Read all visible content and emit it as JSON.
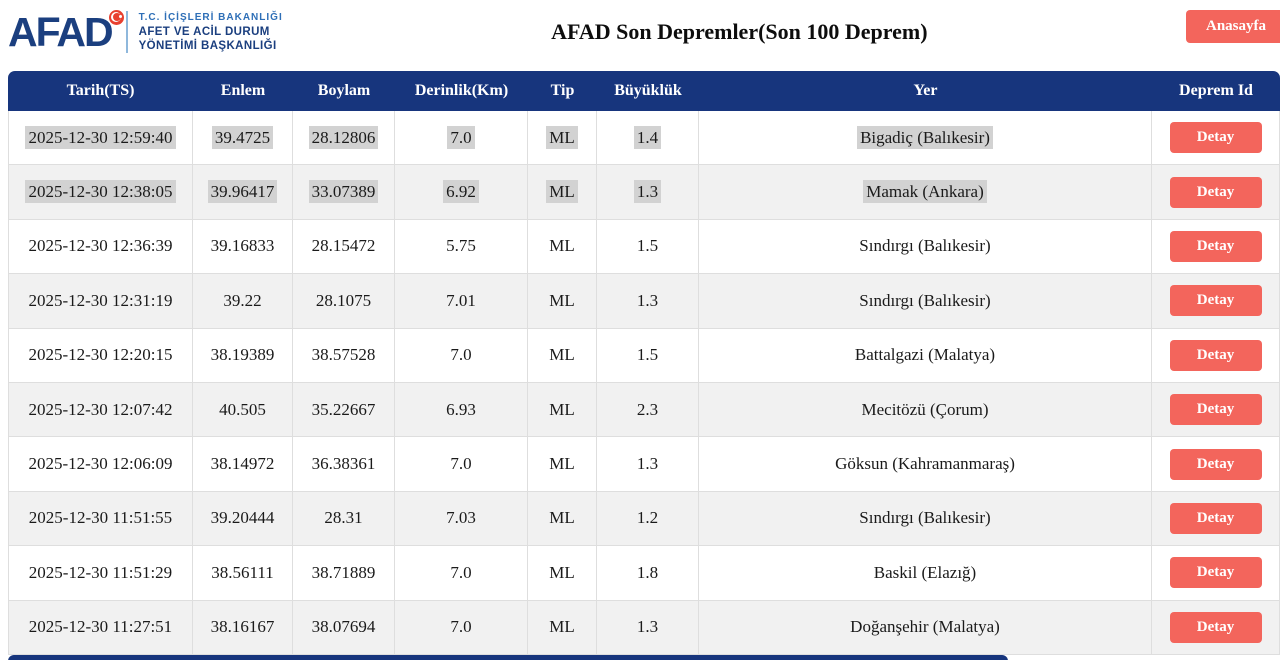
{
  "brand": {
    "logo_text": "AFAD",
    "ministry_line1": "T.C. İÇİŞLERİ BAKANLIĞI",
    "ministry_line2": "AFET VE ACİL DURUM",
    "ministry_line3": "YÖNETİMİ BAŞKANLIĞI"
  },
  "header": {
    "title": "AFAD Son Depremler(Son 100 Deprem)",
    "home_button_label": "Anasayfa"
  },
  "colors": {
    "table_header_bg": "#17357d",
    "button_bg": "#f3655c",
    "row_alt_bg": "#f1f1f1",
    "selection_highlight": "#d2d2d2",
    "logo_navy": "#1b3f7f",
    "logo_light_blue": "#2e6fb7",
    "flag_red": "#e8402f"
  },
  "table": {
    "columns": [
      "Tarih(TS)",
      "Enlem",
      "Boylam",
      "Derinlik(Km)",
      "Tip",
      "Büyüklük",
      "Yer",
      "Deprem Id"
    ],
    "detail_button_label": "Detay",
    "rows": [
      {
        "tarih": "2025-12-30 12:59:40",
        "enlem": "39.4725",
        "boylam": "28.12806",
        "derinlik": "7.0",
        "tip": "ML",
        "buyukluk": "1.4",
        "yer": "Bigadiç (Balıkesir)",
        "highlighted": true
      },
      {
        "tarih": "2025-12-30 12:38:05",
        "enlem": "39.96417",
        "boylam": "33.07389",
        "derinlik": "6.92",
        "tip": "ML",
        "buyukluk": "1.3",
        "yer": "Mamak (Ankara)",
        "highlighted": true
      },
      {
        "tarih": "2025-12-30 12:36:39",
        "enlem": "39.16833",
        "boylam": "28.15472",
        "derinlik": "5.75",
        "tip": "ML",
        "buyukluk": "1.5",
        "yer": "Sındırgı (Balıkesir)",
        "highlighted": false
      },
      {
        "tarih": "2025-12-30 12:31:19",
        "enlem": "39.22",
        "boylam": "28.1075",
        "derinlik": "7.01",
        "tip": "ML",
        "buyukluk": "1.3",
        "yer": "Sındırgı (Balıkesir)",
        "highlighted": false
      },
      {
        "tarih": "2025-12-30 12:20:15",
        "enlem": "38.19389",
        "boylam": "38.57528",
        "derinlik": "7.0",
        "tip": "ML",
        "buyukluk": "1.5",
        "yer": "Battalgazi (Malatya)",
        "highlighted": false
      },
      {
        "tarih": "2025-12-30 12:07:42",
        "enlem": "40.505",
        "boylam": "35.22667",
        "derinlik": "6.93",
        "tip": "ML",
        "buyukluk": "2.3",
        "yer": "Mecitözü (Çorum)",
        "highlighted": false
      },
      {
        "tarih": "2025-12-30 12:06:09",
        "enlem": "38.14972",
        "boylam": "36.38361",
        "derinlik": "7.0",
        "tip": "ML",
        "buyukluk": "1.3",
        "yer": "Göksun (Kahramanmaraş)",
        "highlighted": false
      },
      {
        "tarih": "2025-12-30 11:51:55",
        "enlem": "39.20444",
        "boylam": "28.31",
        "derinlik": "7.03",
        "tip": "ML",
        "buyukluk": "1.2",
        "yer": "Sındırgı (Balıkesir)",
        "highlighted": false
      },
      {
        "tarih": "2025-12-30 11:51:29",
        "enlem": "38.56111",
        "boylam": "38.71889",
        "derinlik": "7.0",
        "tip": "ML",
        "buyukluk": "1.8",
        "yer": "Baskil (Elazığ)",
        "highlighted": false
      },
      {
        "tarih": "2025-12-30 11:27:51",
        "enlem": "38.16167",
        "boylam": "38.07694",
        "derinlik": "7.0",
        "tip": "ML",
        "buyukluk": "1.3",
        "yer": "Doğanşehir (Malatya)",
        "highlighted": false
      }
    ]
  }
}
